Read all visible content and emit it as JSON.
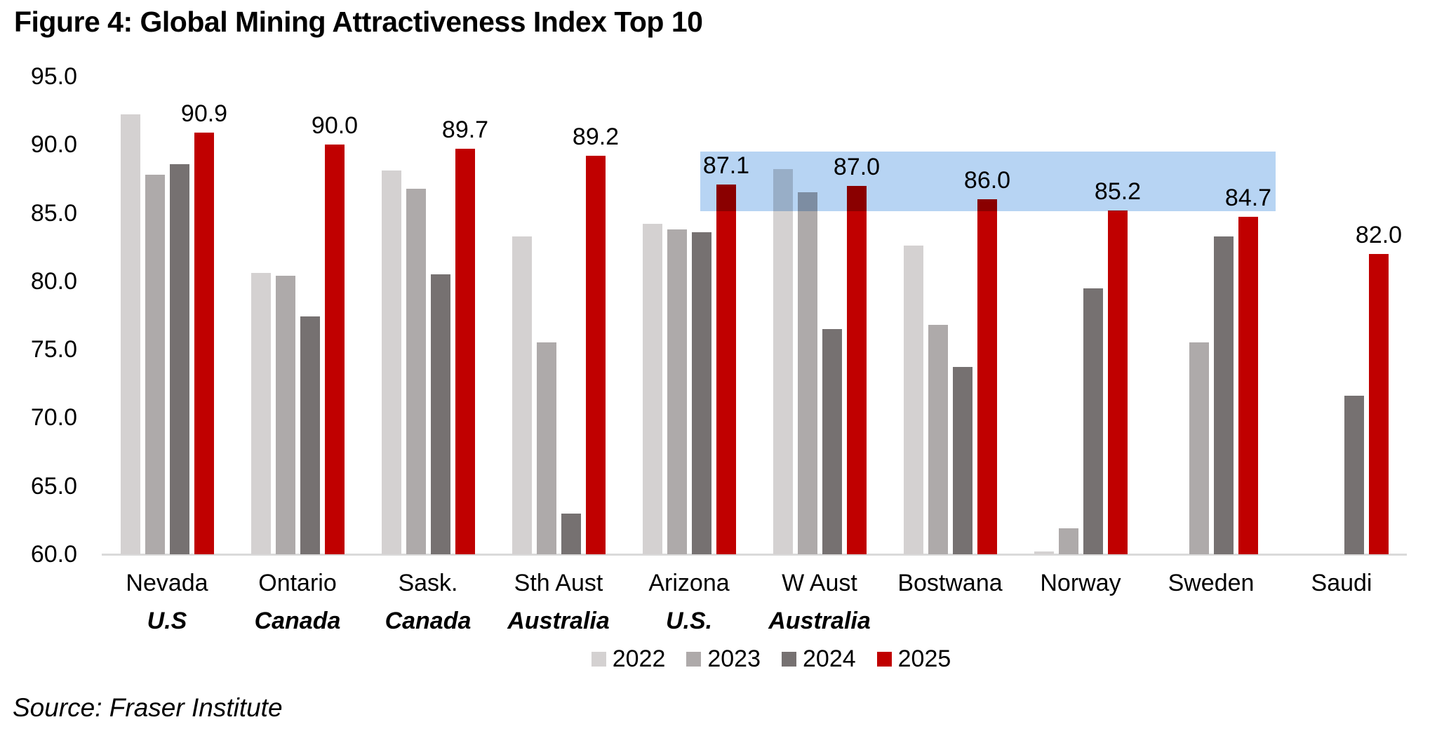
{
  "title": "Figure 4: Global Mining Attractiveness Index Top 10",
  "source": "Source: Fraser Institute",
  "chart_data": {
    "type": "bar",
    "title": "Figure 4: Global Mining Attractiveness Index Top 10",
    "categories": [
      {
        "label": "Nevada",
        "country": "U.S"
      },
      {
        "label": "Ontario",
        "country": "Canada"
      },
      {
        "label": "Sask.",
        "country": "Canada"
      },
      {
        "label": "Sth Aust",
        "country": "Australia"
      },
      {
        "label": "Arizona",
        "country": "U.S."
      },
      {
        "label": "W Aust",
        "country": "Australia"
      },
      {
        "label": "Bostwana",
        "country": ""
      },
      {
        "label": "Norway",
        "country": ""
      },
      {
        "label": "Sweden",
        "country": ""
      },
      {
        "label": "Saudi",
        "country": ""
      }
    ],
    "series": [
      {
        "name": "2022",
        "color": "#d4d1d1",
        "data_labels": false,
        "values": [
          92.2,
          80.6,
          88.1,
          83.3,
          84.2,
          88.2,
          82.6,
          60.2,
          null,
          null
        ]
      },
      {
        "name": "2023",
        "color": "#aeaaaa",
        "data_labels": false,
        "values": [
          87.8,
          80.4,
          86.8,
          75.5,
          83.8,
          86.5,
          76.8,
          61.9,
          75.5,
          null
        ]
      },
      {
        "name": "2024",
        "color": "#767171",
        "data_labels": false,
        "values": [
          88.6,
          77.4,
          80.5,
          63.0,
          83.6,
          76.5,
          73.7,
          79.5,
          83.3,
          71.6
        ]
      },
      {
        "name": "2025",
        "color": "#c00000",
        "data_labels": true,
        "values": [
          90.9,
          90.0,
          89.7,
          89.2,
          87.1,
          87.0,
          86.0,
          85.2,
          84.7,
          82.0
        ]
      }
    ],
    "ylim": [
      60,
      95
    ],
    "yticks": [
      60,
      65,
      70,
      75,
      80,
      85,
      90,
      95
    ],
    "grid": false,
    "legend_position": "bottom",
    "highlight_band": {
      "color": "#b7d4f3",
      "value_top": 89.5,
      "value_bottom": 85.15,
      "x_left_frac": 0.4586,
      "x_right_frac": 0.8995
    }
  }
}
